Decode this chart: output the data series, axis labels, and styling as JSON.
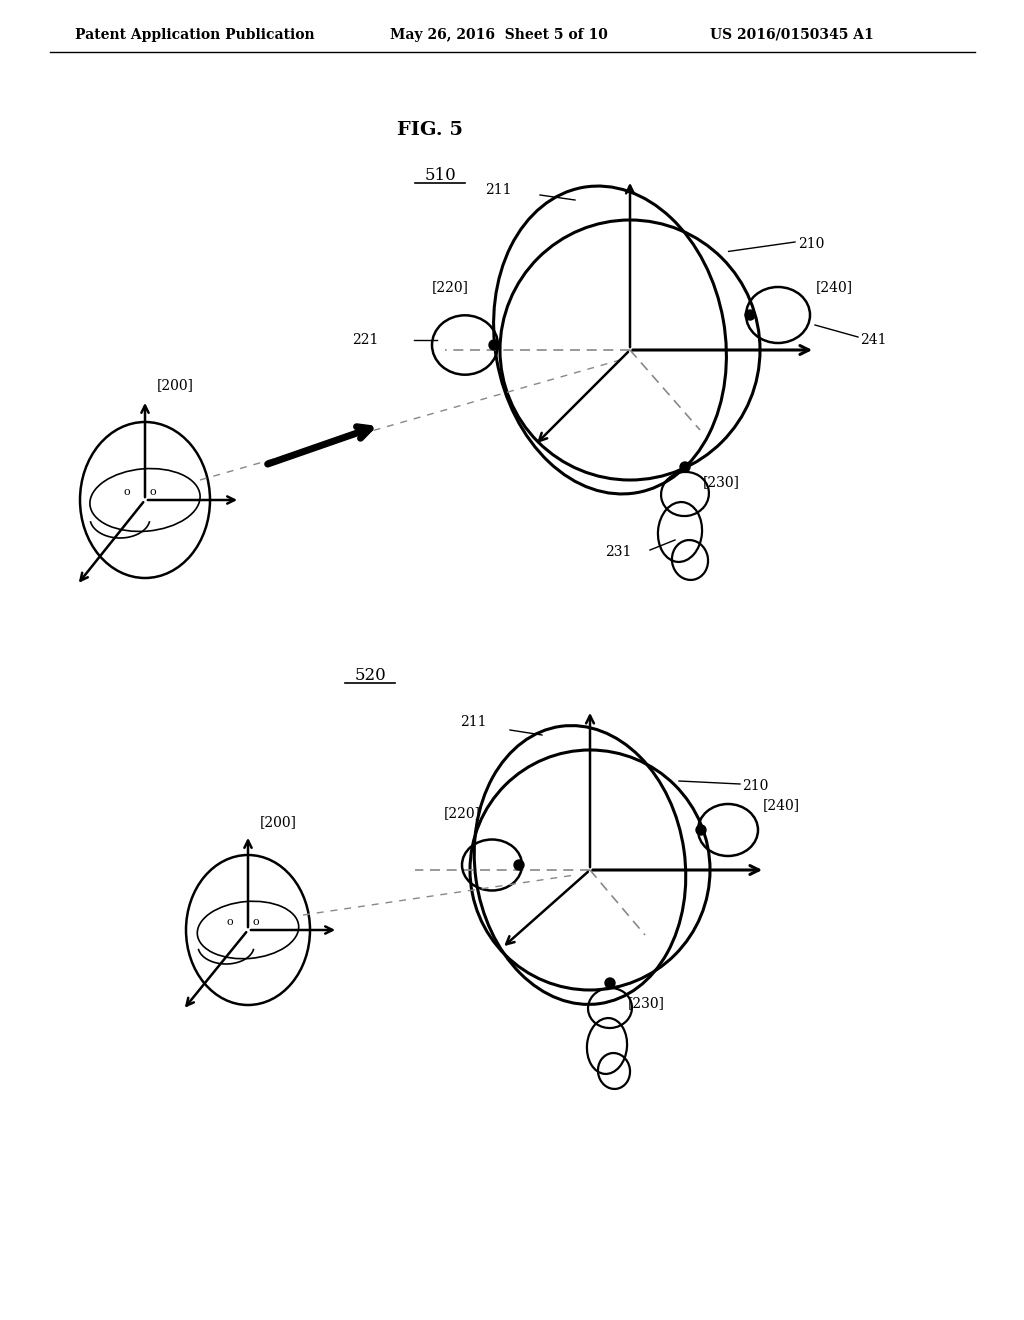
{
  "header_left": "Patent Application Publication",
  "header_center": "May 26, 2016  Sheet 5 of 10",
  "header_right": "US 2016/0150345 A1",
  "fig_label": "FIG. 5",
  "section510_label": "510",
  "section520_label": "520",
  "bg_color": "#ffffff",
  "line_color": "#000000"
}
